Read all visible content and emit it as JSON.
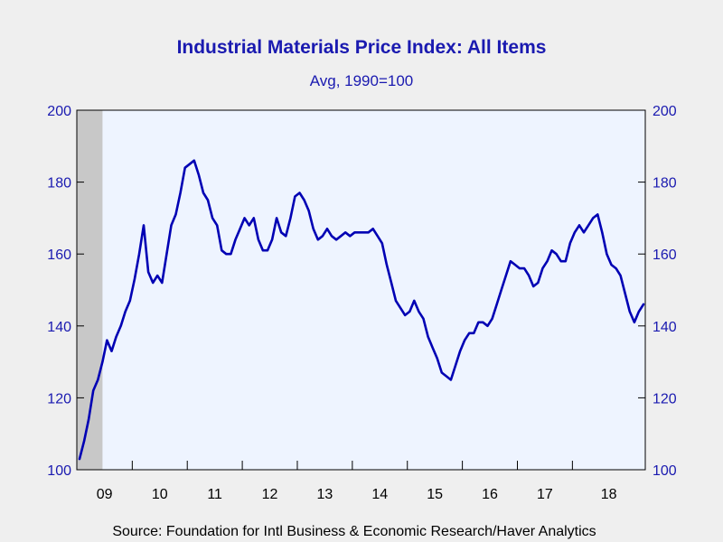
{
  "chart_data": {
    "type": "line",
    "title": "Industrial Materials Price Index: All Items",
    "subtitle": "Avg, 1990=100",
    "source": "Source:  Foundation for Intl Business & Economic Research/Haver Analytics",
    "y_left_label": "",
    "y_right_label": "",
    "ylim": [
      100,
      200
    ],
    "y_ticks": [
      "100",
      "120",
      "140",
      "160",
      "180",
      "200"
    ],
    "x_tick_labels": [
      "09",
      "10",
      "11",
      "12",
      "13",
      "14",
      "15",
      "16",
      "17",
      "18"
    ],
    "grid": false,
    "recession_shading": {
      "start": "2009-01",
      "end": "2009-06"
    },
    "colors": {
      "line": "#0000b4",
      "plot_bg": "#eef4ff",
      "recession": "#c8c8c8",
      "text": "#1a1ab0"
    },
    "series": [
      {
        "name": "",
        "x_start": "2009-01",
        "x_step": "month",
        "values": [
          103,
          108,
          114,
          122,
          125,
          130,
          136,
          133,
          137,
          140,
          144,
          147,
          153,
          160,
          168,
          155,
          152,
          154,
          152,
          160,
          168,
          171,
          177,
          184,
          185,
          186,
          182,
          177,
          175,
          170,
          168,
          161,
          160,
          160,
          164,
          167,
          170,
          168,
          170,
          164,
          161,
          161,
          164,
          170,
          166,
          165,
          170,
          176,
          177,
          175,
          172,
          167,
          164,
          165,
          167,
          165,
          164,
          165,
          166,
          165,
          166,
          166,
          166,
          166,
          167,
          165,
          163,
          157,
          152,
          147,
          145,
          143,
          144,
          147,
          144,
          142,
          137,
          134,
          131,
          127,
          126,
          125,
          129,
          133,
          136,
          138,
          138,
          141,
          141,
          140,
          142,
          146,
          150,
          154,
          158,
          157,
          156,
          156,
          154,
          151,
          152,
          156,
          158,
          161,
          160,
          158,
          158,
          163,
          166,
          168,
          166,
          168,
          170,
          171,
          166,
          160,
          157,
          156,
          154,
          149,
          144,
          141,
          144,
          146
        ]
      }
    ]
  }
}
